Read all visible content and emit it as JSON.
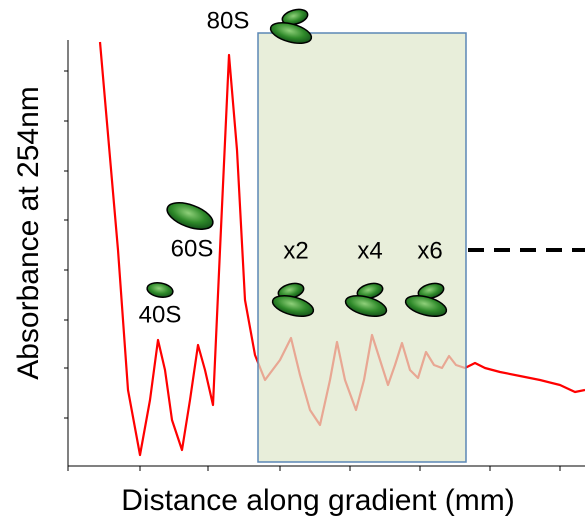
{
  "chart_data": {
    "type": "line",
    "xlabel": "Distance along gradient (mm)",
    "ylabel": "Absorbance at 254nm",
    "xlim": [
      0,
      517
    ],
    "ylim": [
      0,
      426
    ],
    "xticks": [
      0,
      72,
      140,
      212,
      282,
      352,
      422,
      492
    ],
    "yticks": [
      48,
      98,
      146,
      196,
      246,
      295,
      345,
      395
    ],
    "x": [
      32,
      50,
      60,
      72,
      82,
      90,
      97,
      104,
      114,
      122,
      130,
      137,
      145,
      152,
      161,
      169,
      177,
      187,
      197,
      212,
      223,
      232,
      242,
      252,
      262,
      269,
      277,
      288,
      296,
      304,
      312,
      320,
      327,
      334,
      342,
      350,
      358,
      366,
      374,
      381,
      388,
      397,
      407,
      417,
      432,
      452,
      472,
      492,
      507,
      517
    ],
    "series": [
      {
        "color": "#ff0000",
        "values": [
          424,
          216,
          76,
          11,
          66,
          126,
          96,
          46,
          16,
          66,
          121,
          96,
          61,
          216,
          411,
          316,
          166,
          111,
          86,
          106,
          128,
          91,
          56,
          41,
          86,
          124,
          86,
          56,
          86,
          131,
          106,
          81,
          101,
          123,
          96,
          88,
          114,
          101,
          98,
          110,
          101,
          98,
          103,
          98,
          94,
          90,
          86,
          81,
          74,
          76
        ]
      }
    ],
    "annotations": [
      "80S",
      "60S",
      "40S",
      "x2",
      "x4",
      "x6"
    ]
  }
}
